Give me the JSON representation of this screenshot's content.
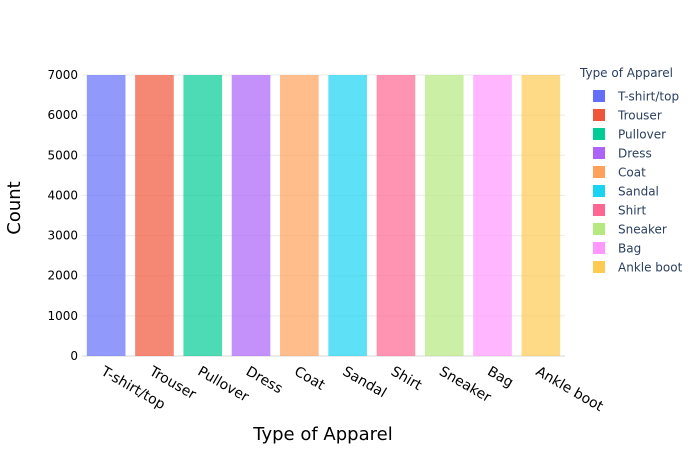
{
  "chart_data": {
    "type": "bar",
    "xlabel": "Type of Apparel",
    "ylabel": "Count",
    "ylim": [
      0,
      7000
    ],
    "yticks": [
      0,
      1000,
      2000,
      3000,
      4000,
      5000,
      6000,
      7000
    ],
    "grid": "horizontal",
    "legend_title": "Type of Apparel",
    "legend_placement": "right",
    "categories": [
      "T-shirt/top",
      "Trouser",
      "Pullover",
      "Dress",
      "Coat",
      "Sandal",
      "Shirt",
      "Sneaker",
      "Bag",
      "Ankle boot"
    ],
    "values": [
      7000,
      7000,
      7000,
      7000,
      7000,
      7000,
      7000,
      7000,
      7000,
      7000
    ],
    "colors": [
      "#636efa",
      "#EF553B",
      "#00cc96",
      "#ab63fa",
      "#FFA15A",
      "#19d3f3",
      "#FF6692",
      "#B6E880",
      "#FF97FF",
      "#FECB52"
    ]
  }
}
